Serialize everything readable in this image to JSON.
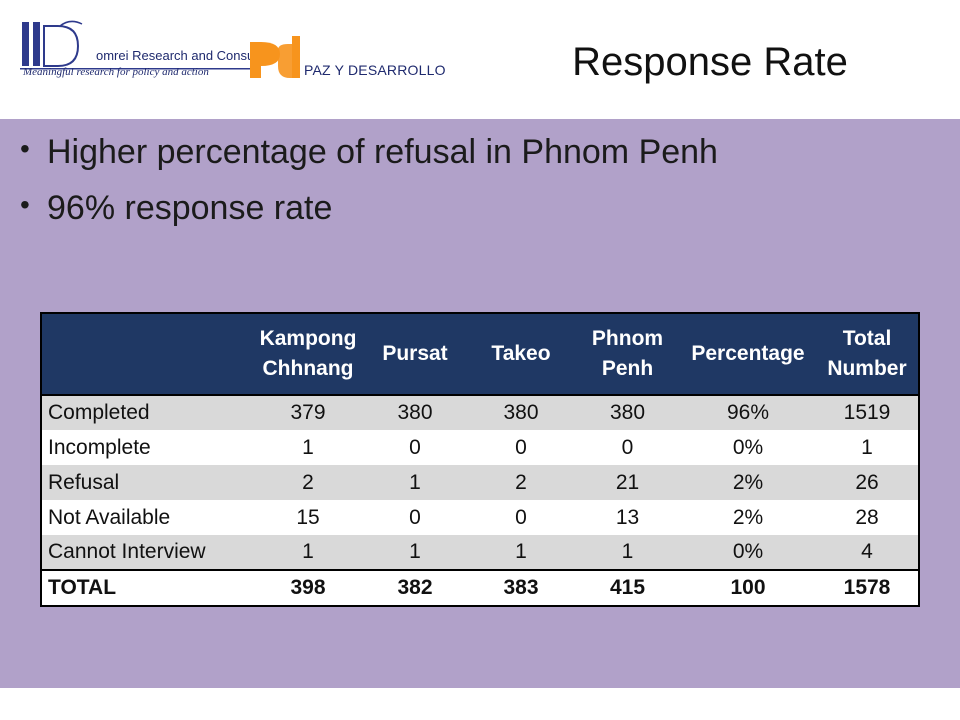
{
  "header": {
    "domrei_name": "omrei Research and Consulting",
    "domrei_tagline": "Meaningful research for policy and action",
    "pyd_name": "PAZ Y DESARROLLO",
    "title": "Response Rate"
  },
  "bullets": [
    "Higher percentage of refusal in Phnom Penh",
    "96% response rate"
  ],
  "table": {
    "headers": [
      "",
      "Kampong Chhnang",
      "Pursat",
      "Takeo",
      "Phnom Penh",
      "Percentage",
      "Total Number"
    ],
    "rows": [
      [
        "Completed",
        "379",
        "380",
        "380",
        "380",
        "96%",
        "1519"
      ],
      [
        "Incomplete",
        "1",
        "0",
        "0",
        "0",
        "0%",
        "1"
      ],
      [
        "Refusal",
        "2",
        "1",
        "2",
        "21",
        "2%",
        "26"
      ],
      [
        "Not Available",
        "15",
        "0",
        "0",
        "13",
        "2%",
        "28"
      ],
      [
        "Cannot Interview",
        "1",
        "1",
        "1",
        "1",
        "0%",
        "4"
      ]
    ],
    "total": [
      "TOTAL",
      "398",
      "382",
      "383",
      "415",
      "100",
      "1578"
    ]
  },
  "colors": {
    "header_fill": "#1f3864",
    "content_bg": "#b1a1c9",
    "row_shade": "#d9d9d9",
    "pyd_orange": "#f7941d",
    "logo_navy": "#1f2a6e"
  }
}
